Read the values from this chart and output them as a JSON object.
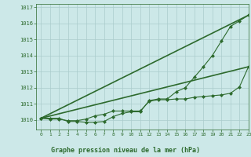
{
  "title": "Graphe pression niveau de la mer (hPa)",
  "bg_color": "#cce8e8",
  "grid_color": "#aacccc",
  "line_color": "#2d6a2d",
  "xlim": [
    -0.5,
    23
  ],
  "ylim": [
    1009.4,
    1017.2
  ],
  "yticks": [
    1010,
    1011,
    1012,
    1013,
    1014,
    1015,
    1016,
    1017
  ],
  "xticks": [
    0,
    1,
    2,
    3,
    4,
    5,
    6,
    7,
    8,
    9,
    10,
    11,
    12,
    13,
    14,
    15,
    16,
    17,
    18,
    19,
    20,
    21,
    22,
    23
  ],
  "series": [
    {
      "x": [
        0,
        1,
        2,
        3,
        4,
        5,
        6,
        7,
        8,
        9,
        10,
        11,
        12,
        13,
        14,
        15,
        16,
        17,
        18,
        19,
        20,
        21,
        22,
        23
      ],
      "y": [
        1010.1,
        1010.1,
        1010.1,
        1009.9,
        1009.9,
        1009.85,
        1009.85,
        1009.9,
        1010.2,
        1010.4,
        1010.5,
        1010.5,
        1011.2,
        1011.3,
        1011.3,
        1011.75,
        1012.0,
        1012.65,
        1013.3,
        1014.0,
        1014.9,
        1015.8,
        1016.15,
        1016.5
      ],
      "marker": "D",
      "markersize": 2.0,
      "linewidth": 0.8,
      "has_marker": true
    },
    {
      "x": [
        0,
        1,
        2,
        3,
        4,
        5,
        6,
        7,
        8,
        9,
        10,
        11,
        12,
        13,
        14,
        15,
        16,
        17,
        18,
        19,
        20,
        21,
        22,
        23
      ],
      "y": [
        1010.1,
        1010.05,
        1010.05,
        1009.95,
        1009.95,
        1010.05,
        1010.25,
        1010.35,
        1010.55,
        1010.55,
        1010.55,
        1010.55,
        1011.15,
        1011.25,
        1011.25,
        1011.3,
        1011.3,
        1011.4,
        1011.45,
        1011.5,
        1011.55,
        1011.65,
        1012.05,
        1013.3
      ],
      "marker": "D",
      "markersize": 2.0,
      "linewidth": 0.8,
      "has_marker": true
    },
    {
      "x": [
        0,
        23
      ],
      "y": [
        1010.1,
        1016.5
      ],
      "marker": null,
      "markersize": 0,
      "linewidth": 1.2,
      "has_marker": false
    },
    {
      "x": [
        0,
        23
      ],
      "y": [
        1010.1,
        1013.3
      ],
      "marker": null,
      "markersize": 0,
      "linewidth": 1.2,
      "has_marker": false
    }
  ]
}
